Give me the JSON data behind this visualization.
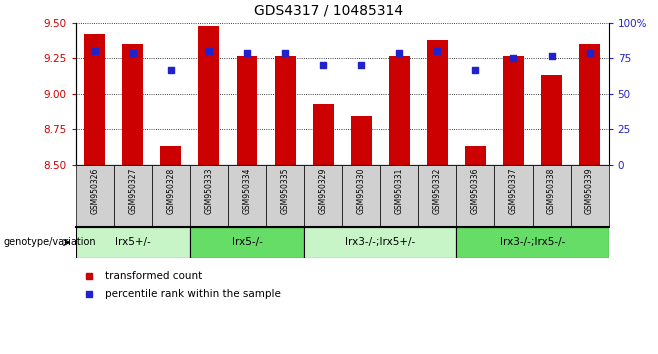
{
  "title": "GDS4317 / 10485314",
  "samples": [
    "GSM950326",
    "GSM950327",
    "GSM950328",
    "GSM950333",
    "GSM950334",
    "GSM950335",
    "GSM950329",
    "GSM950330",
    "GSM950331",
    "GSM950332",
    "GSM950336",
    "GSM950337",
    "GSM950338",
    "GSM950339"
  ],
  "transformed_count": [
    9.42,
    9.35,
    8.63,
    9.48,
    9.27,
    9.27,
    8.93,
    8.84,
    9.27,
    9.38,
    8.63,
    9.27,
    9.13,
    9.35
  ],
  "percentile_rank": [
    80,
    79,
    67,
    80,
    79,
    79,
    70,
    70,
    79,
    80,
    67,
    75,
    77,
    79
  ],
  "ylim_left": [
    8.5,
    9.5
  ],
  "ylim_right": [
    0,
    100
  ],
  "yticks_left": [
    8.5,
    8.75,
    9.0,
    9.25,
    9.5
  ],
  "yticks_right": [
    0,
    25,
    50,
    75,
    100
  ],
  "ytick_right_labels": [
    "0",
    "25",
    "50",
    "75",
    "100%"
  ],
  "bar_color": "#cc0000",
  "dot_color": "#2222cc",
  "groups": [
    {
      "label": "lrx5+/-",
      "start": 0,
      "end": 3,
      "color": "#c8f5c8"
    },
    {
      "label": "lrx5-/-",
      "start": 3,
      "end": 6,
      "color": "#66dd66"
    },
    {
      "label": "lrx3-/-;lrx5+/-",
      "start": 6,
      "end": 10,
      "color": "#c8f5c8"
    },
    {
      "label": "lrx3-/-;lrx5-/-",
      "start": 10,
      "end": 14,
      "color": "#66dd66"
    }
  ],
  "genotype_label": "genotype/variation",
  "legend_items": [
    {
      "label": "transformed count",
      "color": "#cc0000"
    },
    {
      "label": "percentile rank within the sample",
      "color": "#2222cc"
    }
  ],
  "tick_label_color_left": "#cc0000",
  "tick_label_color_right": "#2222cc",
  "title_fontsize": 10,
  "bar_width": 0.55,
  "bar_linewidth": 0
}
